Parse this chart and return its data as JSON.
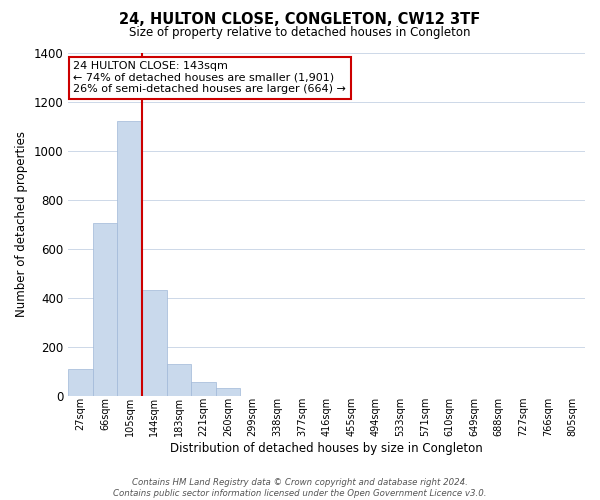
{
  "title": "24, HULTON CLOSE, CONGLETON, CW12 3TF",
  "subtitle": "Size of property relative to detached houses in Congleton",
  "xlabel": "Distribution of detached houses by size in Congleton",
  "ylabel": "Number of detached properties",
  "bin_labels": [
    "27sqm",
    "66sqm",
    "105sqm",
    "144sqm",
    "183sqm",
    "221sqm",
    "260sqm",
    "299sqm",
    "338sqm",
    "377sqm",
    "416sqm",
    "455sqm",
    "494sqm",
    "533sqm",
    "571sqm",
    "610sqm",
    "649sqm",
    "688sqm",
    "727sqm",
    "766sqm",
    "805sqm"
  ],
  "bar_heights": [
    110,
    705,
    1120,
    430,
    130,
    57,
    30,
    0,
    0,
    0,
    0,
    0,
    0,
    0,
    0,
    0,
    0,
    0,
    0,
    0,
    0
  ],
  "bar_color": "#c9d9ec",
  "bar_edge_color": "#a0b8d8",
  "vline_color": "#cc0000",
  "ylim": [
    0,
    1400
  ],
  "yticks": [
    0,
    200,
    400,
    600,
    800,
    1000,
    1200,
    1400
  ],
  "annotation_title": "24 HULTON CLOSE: 143sqm",
  "annotation_line1": "← 74% of detached houses are smaller (1,901)",
  "annotation_line2": "26% of semi-detached houses are larger (664) →",
  "annotation_box_color": "#ffffff",
  "annotation_box_edge": "#cc0000",
  "footer_line1": "Contains HM Land Registry data © Crown copyright and database right 2024.",
  "footer_line2": "Contains public sector information licensed under the Open Government Licence v3.0.",
  "bg_color": "#ffffff",
  "grid_color": "#cdd8e8"
}
